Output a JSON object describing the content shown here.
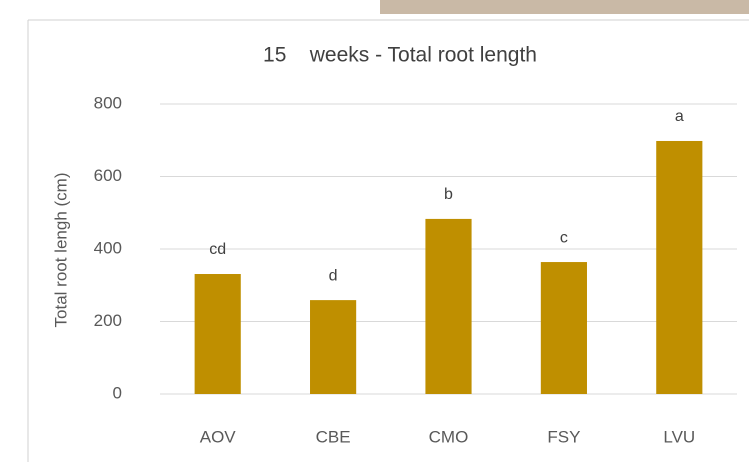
{
  "chart_data": {
    "type": "bar",
    "title": "15    weeks - Total root length",
    "y_label": "Total root lengh (cm)",
    "categories": [
      "AOV",
      "CBE",
      "CMO",
      "FSY",
      "LVU"
    ],
    "values": [
      331,
      259,
      483,
      364,
      698
    ],
    "letters": [
      "cd",
      "d",
      "b",
      "c",
      "a"
    ],
    "color": "#bf8f00",
    "ylim": [
      0,
      800
    ],
    "yticks": [
      0,
      200,
      400,
      600,
      800
    ],
    "grid": true
  }
}
